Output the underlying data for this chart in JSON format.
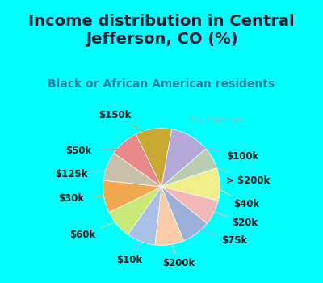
{
  "title": "Income distribution in Central\nJefferson, CO (%)",
  "subtitle": "Black or African American residents",
  "background_top": "#00FFFF",
  "background_chart": "#e8f5ee",
  "labels": [
    "$100k",
    "> $200k",
    "$40k",
    "$20k",
    "$75k",
    "$200k",
    "$10k",
    "$60k",
    "$30k",
    "$125k",
    "$50k",
    "$150k"
  ],
  "values": [
    11,
    6,
    9,
    7,
    8,
    8,
    8,
    8,
    9,
    8,
    8,
    10
  ],
  "colors": [
    "#b3a8d8",
    "#b8ccb0",
    "#f0ee88",
    "#f4b8b8",
    "#9ab0d8",
    "#f8cca8",
    "#a8c0e8",
    "#c8e878",
    "#f0a850",
    "#c8c0a8",
    "#e88888",
    "#c8a830"
  ],
  "wedge_linewidth": 0.5,
  "wedge_linecolor": "#ffffff",
  "title_fontsize": 14,
  "subtitle_fontsize": 10,
  "label_fontsize": 8.5,
  "watermark": "City-Data.com"
}
